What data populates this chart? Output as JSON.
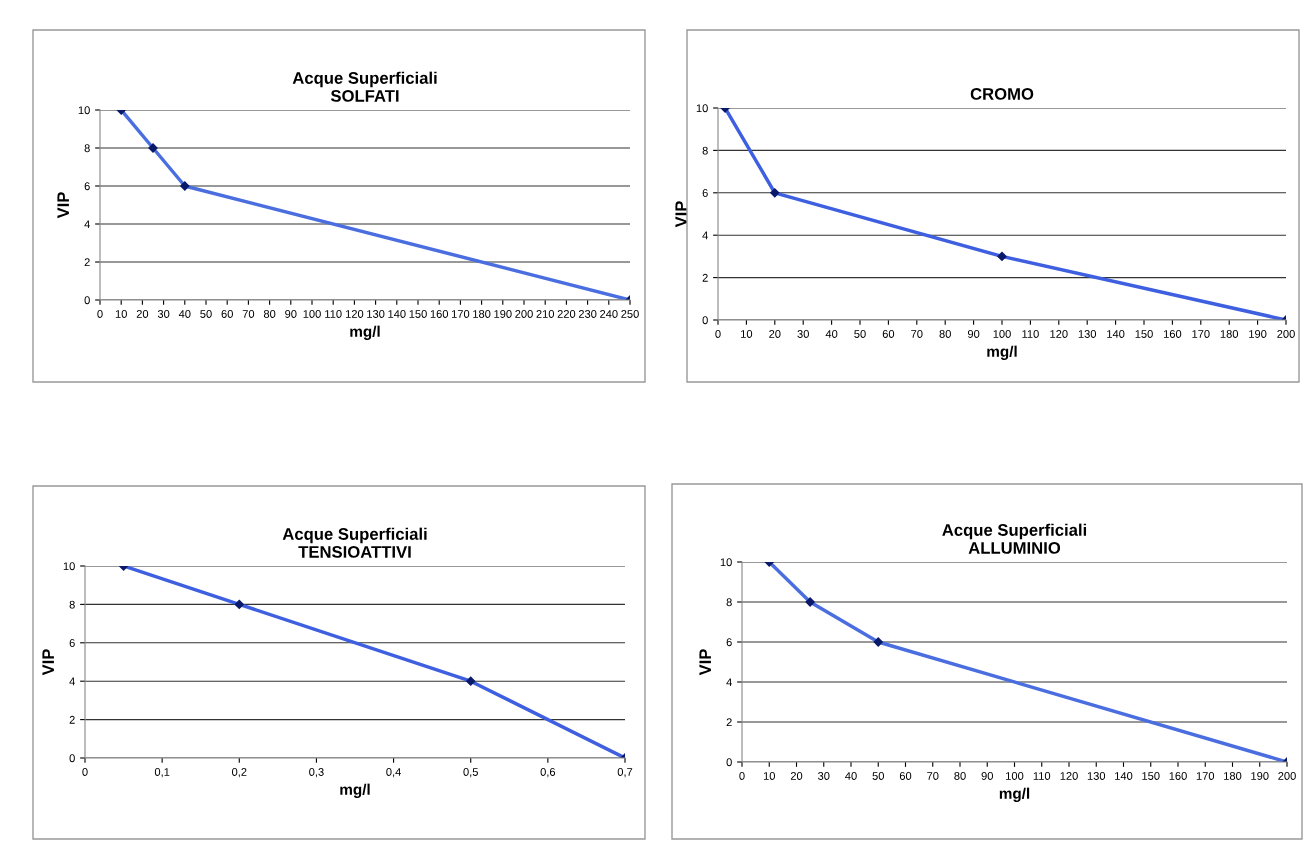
{
  "chart_data": [
    {
      "type": "line",
      "title": "Acque Superficiali\nSOLFATI",
      "xlabel": "mg/l",
      "ylabel": "VIP",
      "x": [
        10,
        25,
        40,
        250
      ],
      "series": [
        {
          "color": "#4a6ee0",
          "values": [
            10,
            8,
            6,
            0
          ]
        }
      ],
      "xlim": [
        0,
        250
      ],
      "xticks": [
        0,
        10,
        20,
        30,
        40,
        50,
        60,
        70,
        80,
        90,
        100,
        110,
        120,
        130,
        140,
        150,
        160,
        170,
        180,
        190,
        200,
        210,
        220,
        230,
        240,
        250
      ],
      "ylim": [
        0,
        10
      ],
      "yticks": [
        0,
        2,
        4,
        6,
        8,
        10
      ],
      "grid": "y",
      "marker": "diamond",
      "line_style": "solid"
    },
    {
      "type": "line",
      "title": "CROMO",
      "xlabel": "mg/l",
      "ylabel": "VIP",
      "x": [
        2.5,
        20,
        100,
        200
      ],
      "series": [
        {
          "color": "#3d5fe0",
          "values": [
            10,
            6,
            3,
            0
          ]
        }
      ],
      "xlim": [
        0,
        200
      ],
      "xticks": [
        0,
        10,
        20,
        30,
        40,
        50,
        60,
        70,
        80,
        90,
        100,
        110,
        120,
        130,
        140,
        150,
        160,
        170,
        180,
        190,
        200
      ],
      "ylim": [
        0,
        10
      ],
      "yticks": [
        0,
        2,
        4,
        6,
        8,
        10
      ],
      "grid": "y",
      "marker": "diamond",
      "line_style": "solid"
    },
    {
      "type": "line",
      "title": "Acque Superficiali\nTENSIOATTIVI",
      "xlabel": "mg/l",
      "ylabel": "VIP",
      "x": [
        0.05,
        0.2,
        0.5,
        0.7
      ],
      "series": [
        {
          "color": "#3d5fe0",
          "values": [
            10,
            8,
            4,
            0
          ]
        }
      ],
      "xlim": [
        0,
        0.7
      ],
      "xticks": [
        0,
        {
          "value": 0.1,
          "label": "0,1"
        },
        {
          "value": 0.2,
          "label": "0,2"
        },
        {
          "value": 0.3,
          "label": "0,3"
        },
        {
          "value": 0.4,
          "label": "0,4"
        },
        {
          "value": 0.5,
          "label": "0,5"
        },
        {
          "value": 0.6,
          "label": "0,6"
        },
        {
          "value": 0.7,
          "label": "0,7"
        }
      ],
      "ylim": [
        0,
        10
      ],
      "yticks": [
        0,
        2,
        4,
        6,
        8,
        10
      ],
      "grid": "y",
      "marker": "diamond",
      "line_style": "solid"
    },
    {
      "type": "line",
      "title": "Acque Superficiali\nALLUMINIO",
      "xlabel": "mg/l",
      "ylabel": "VIP",
      "x": [
        10,
        25,
        50,
        200
      ],
      "series": [
        {
          "color": "#4a6ee0",
          "values": [
            10,
            8,
            6,
            0
          ]
        }
      ],
      "xlim": [
        0,
        200
      ],
      "xticks": [
        0,
        10,
        20,
        30,
        40,
        50,
        60,
        70,
        80,
        90,
        100,
        110,
        120,
        130,
        140,
        150,
        160,
        170,
        180,
        190,
        200
      ],
      "ylim": [
        0,
        10
      ],
      "yticks": [
        0,
        2,
        4,
        6,
        8,
        10
      ],
      "grid": "y",
      "marker": "diamond",
      "line_style": "solid"
    }
  ]
}
